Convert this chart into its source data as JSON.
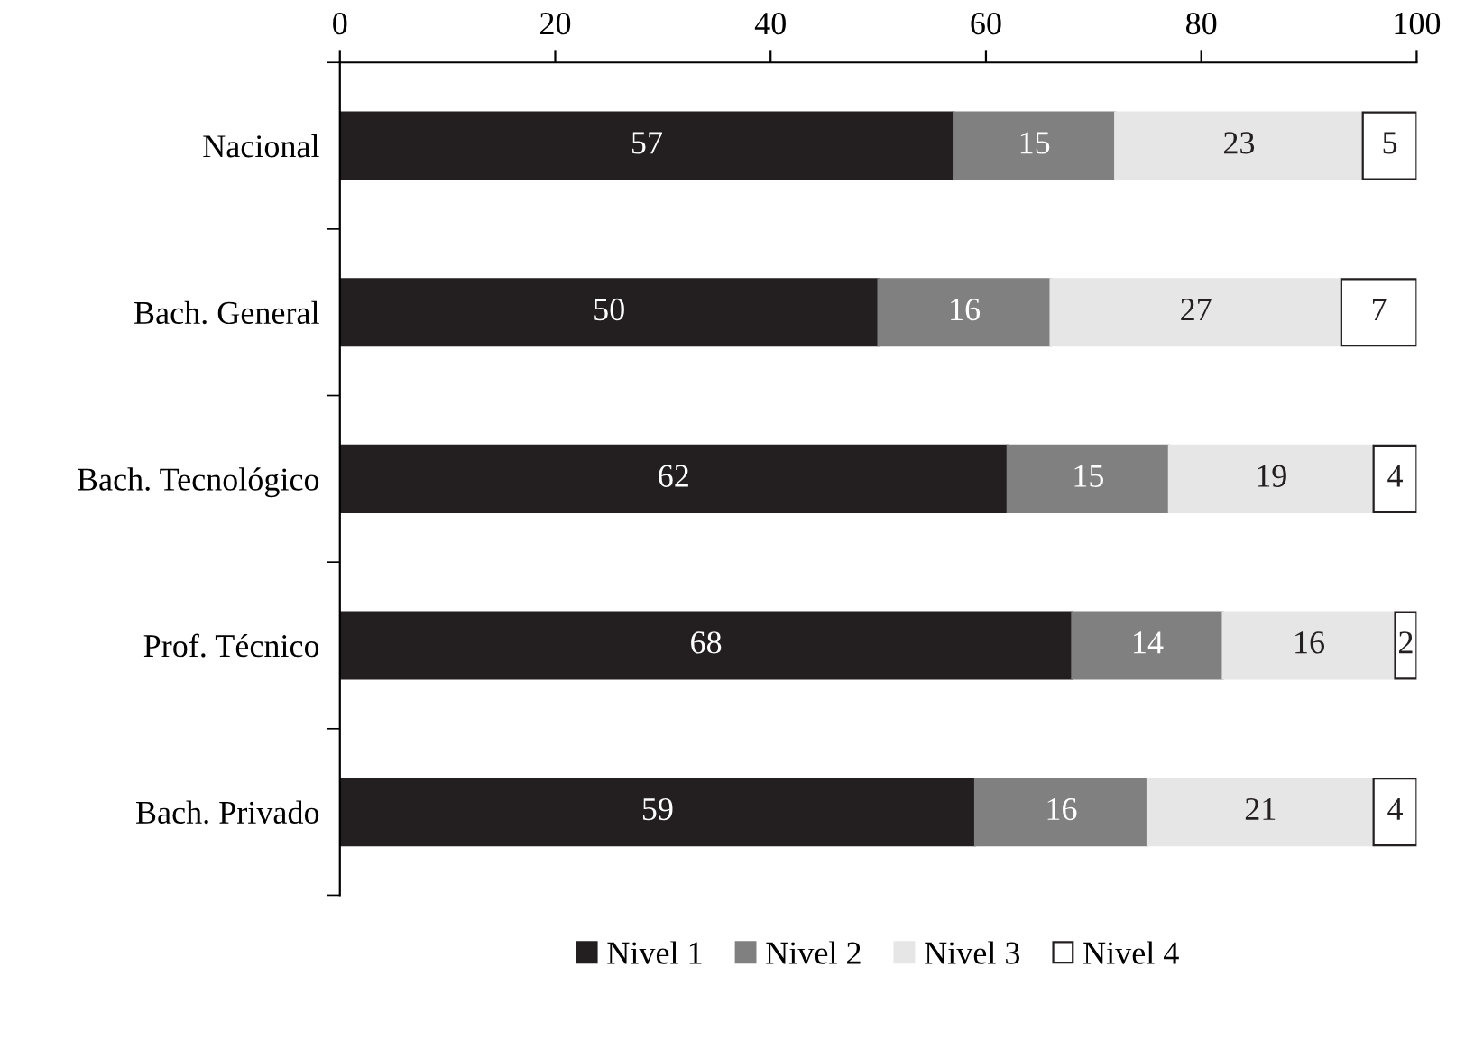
{
  "chart_data": {
    "type": "bar",
    "orientation": "horizontal",
    "stacked": true,
    "data_labels": true,
    "legend": "bottom",
    "grid": false,
    "categories": [
      "Nacional",
      "Bach. General",
      "Bach. Tecnológico",
      "Prof. Técnico",
      "Bach. Privado"
    ],
    "xlim": [
      0,
      100
    ],
    "xticks": [
      0,
      20,
      40,
      60,
      80,
      100
    ],
    "series": [
      {
        "name": "Nivel 1",
        "color": "#231f20",
        "values": [
          57,
          50,
          62,
          68,
          59
        ]
      },
      {
        "name": "Nivel 2",
        "color": "#808080",
        "values": [
          15,
          16,
          15,
          14,
          16
        ]
      },
      {
        "name": "Nivel 3",
        "color": "#e6e6e6",
        "values": [
          23,
          27,
          19,
          16,
          21
        ]
      },
      {
        "name": "Nivel 4",
        "color": "#ffffff",
        "values": [
          5,
          7,
          4,
          2,
          4
        ]
      }
    ]
  }
}
